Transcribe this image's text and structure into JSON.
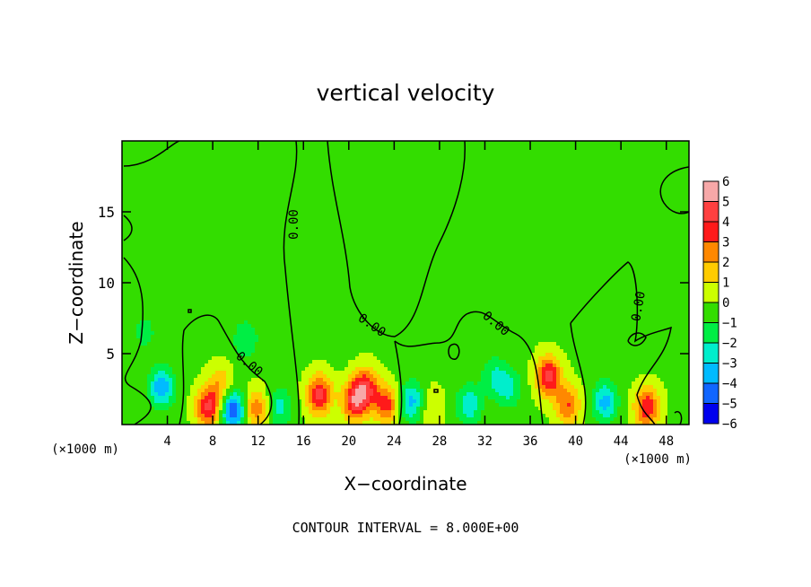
{
  "chart_data": {
    "type": "heatmap",
    "title": "vertical velocity",
    "xlabel": "X−coordinate",
    "ylabel": "Z−coordinate",
    "x_unit_left": "(×1000 m)",
    "x_unit_right": "(×1000 m)",
    "footer": "CONTOUR INTERVAL = 8.000E+00",
    "xlim": [
      0,
      50
    ],
    "ylim": [
      0,
      20
    ],
    "x_ticks": [
      4,
      8,
      12,
      16,
      20,
      24,
      28,
      32,
      36,
      40,
      44,
      48
    ],
    "x_tick_labels": [
      "4",
      "8",
      "12",
      "16",
      "20",
      "24",
      "28",
      "32",
      "36",
      "40",
      "44",
      "48"
    ],
    "y_ticks": [
      5,
      10,
      15
    ],
    "y_tick_labels": [
      "5",
      "10",
      "15"
    ],
    "contour_labels": [
      "0.00",
      "0.00",
      "0.00",
      "0.00",
      "0.00"
    ],
    "colorbar": {
      "levels": [
        6,
        5,
        4,
        3,
        2,
        1,
        0,
        -1,
        -2,
        -3,
        -4,
        -5,
        -6
      ],
      "level_labels": [
        "6",
        "5",
        "4",
        "3",
        "2",
        "1",
        "0",
        "−1",
        "−2",
        "−3",
        "−4",
        "−5",
        "−6"
      ],
      "colors": [
        "#f7a8a8",
        "#ff4040",
        "#ff1a1a",
        "#ff8800",
        "#ffcc00",
        "#ccff00",
        "#33dd00",
        "#00ee44",
        "#00eecc",
        "#00bbff",
        "#1166ff",
        "#0000ee",
        "#7700bb"
      ]
    },
    "field": {
      "background": 0.3,
      "features": [
        {
          "x": 3.5,
          "z": 2.6,
          "value": -3.6
        },
        {
          "x": 9.8,
          "z": 1.0,
          "value": -4.8
        },
        {
          "x": 7.6,
          "z": 1.2,
          "value": 4.4
        },
        {
          "x": 11.8,
          "z": 1.1,
          "value": 3.0
        },
        {
          "x": 8.7,
          "z": 2.8,
          "value": 2.0
        },
        {
          "x": 10.9,
          "z": 6.0,
          "value": -1.8
        },
        {
          "x": 13.9,
          "z": 1.2,
          "value": -2.2
        },
        {
          "x": 17.4,
          "z": 2.1,
          "value": 4.5
        },
        {
          "x": 20.5,
          "z": 1.6,
          "value": 4.4
        },
        {
          "x": 21.5,
          "z": 2.6,
          "value": 4.0
        },
        {
          "x": 23.3,
          "z": 1.4,
          "value": 3.6
        },
        {
          "x": 25.6,
          "z": 1.6,
          "value": -3.2
        },
        {
          "x": 27.2,
          "z": 1.2,
          "value": 1.4
        },
        {
          "x": 30.6,
          "z": 1.4,
          "value": -2.6
        },
        {
          "x": 34.1,
          "z": 2.6,
          "value": -2.2
        },
        {
          "x": 32.8,
          "z": 3.4,
          "value": -1.8
        },
        {
          "x": 37.6,
          "z": 3.4,
          "value": 4.6
        },
        {
          "x": 39.3,
          "z": 1.4,
          "value": 3.2
        },
        {
          "x": 42.6,
          "z": 1.6,
          "value": -3.2
        },
        {
          "x": 46.3,
          "z": 1.2,
          "value": 4.2
        },
        {
          "x": 22.0,
          "z": 8.5,
          "value": -0.8
        },
        {
          "x": 6.5,
          "z": 11.5,
          "value": -0.7
        },
        {
          "x": 45.5,
          "z": 9.0,
          "value": -0.8
        },
        {
          "x": 2.0,
          "z": 6.5,
          "value": -1.2
        }
      ]
    }
  }
}
